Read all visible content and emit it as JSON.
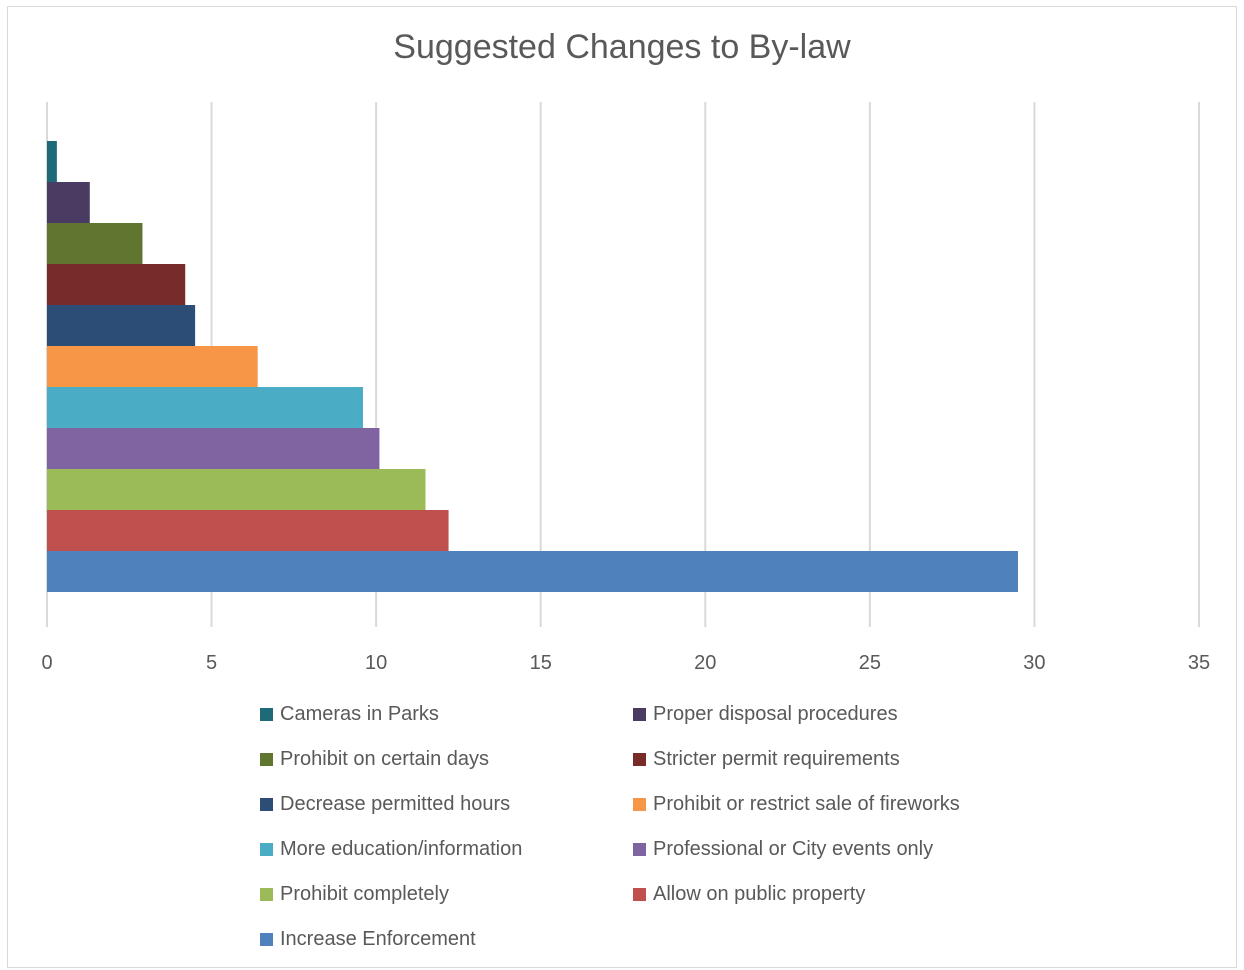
{
  "chart_data": {
    "type": "bar",
    "orientation": "horizontal",
    "title": "Suggested Changes to By-law",
    "xlabel": "",
    "ylabel": "",
    "xlim": [
      0,
      35
    ],
    "x_ticks": [
      "0",
      "5",
      "10",
      "15",
      "20",
      "25",
      "30",
      "35"
    ],
    "grid": true,
    "legend_position": "bottom",
    "series": [
      {
        "name": "Cameras in Parks",
        "value": 0.3,
        "color": "#1f6a78"
      },
      {
        "name": "Proper disposal procedures",
        "value": 1.3,
        "color": "#4a3b62"
      },
      {
        "name": "Prohibit on certain days",
        "value": 2.9,
        "color": "#5f7530"
      },
      {
        "name": "Stricter permit requirements",
        "value": 4.2,
        "color": "#772c2a"
      },
      {
        "name": "Decrease permitted hours",
        "value": 4.5,
        "color": "#2c4d75"
      },
      {
        "name": "Prohibit or restrict sale of fireworks",
        "value": 6.4,
        "color": "#f79646"
      },
      {
        "name": "More education/information",
        "value": 9.6,
        "color": "#4bacc6"
      },
      {
        "name": "Professional or City events only",
        "value": 10.1,
        "color": "#8064a2"
      },
      {
        "name": "Prohibit completely",
        "value": 11.5,
        "color": "#9bbb59"
      },
      {
        "name": "Allow on public property",
        "value": 12.2,
        "color": "#c0504d"
      },
      {
        "name": "Increase Enforcement",
        "value": 29.5,
        "color": "#4f81bd"
      }
    ]
  }
}
